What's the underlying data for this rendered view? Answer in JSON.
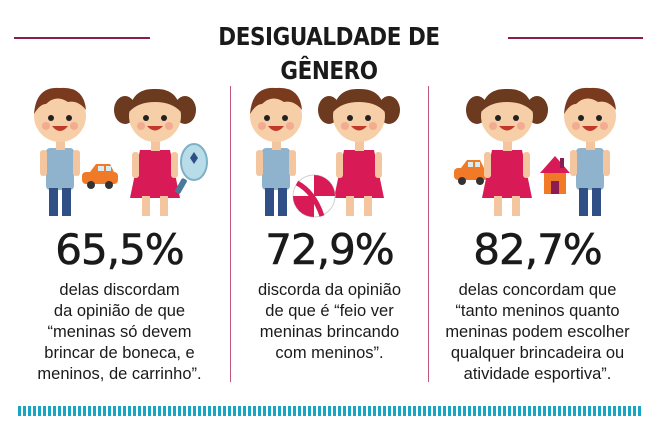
{
  "title": "DESIGUALDADE DE GÊNERO",
  "colors": {
    "accent_line": "#8a1d4f",
    "divider": "#c0587e",
    "stripes": "#17a7c4",
    "girl_dress": "#d81b57",
    "boy_shirt": "#8fb3cc",
    "car": "#f07a28"
  },
  "panels": [
    {
      "stat": "65,5%",
      "description": "delas discordam\nda opinião de que\n“meninas só devem\nbrincar de boneca, e\nmeninos, de carrinho”.",
      "icons": [
        "boy-icon",
        "girl-icon",
        "toy-car-icon",
        "mirror-icon"
      ]
    },
    {
      "stat": "72,9%",
      "description": "discorda da opinião\nde que é “feio ver\nmeninas brincando\ncom meninos”.",
      "icons": [
        "boy-icon",
        "girl-icon",
        "beach-ball-icon"
      ]
    },
    {
      "stat": "82,7%",
      "description": "delas concordam que\n“tanto meninos quanto\nmeninas podem escolher\nqualquer brincadeira ou\natividade esportiva”.",
      "icons": [
        "girl-icon",
        "boy-icon",
        "toy-car-icon",
        "toy-house-icon"
      ]
    }
  ]
}
